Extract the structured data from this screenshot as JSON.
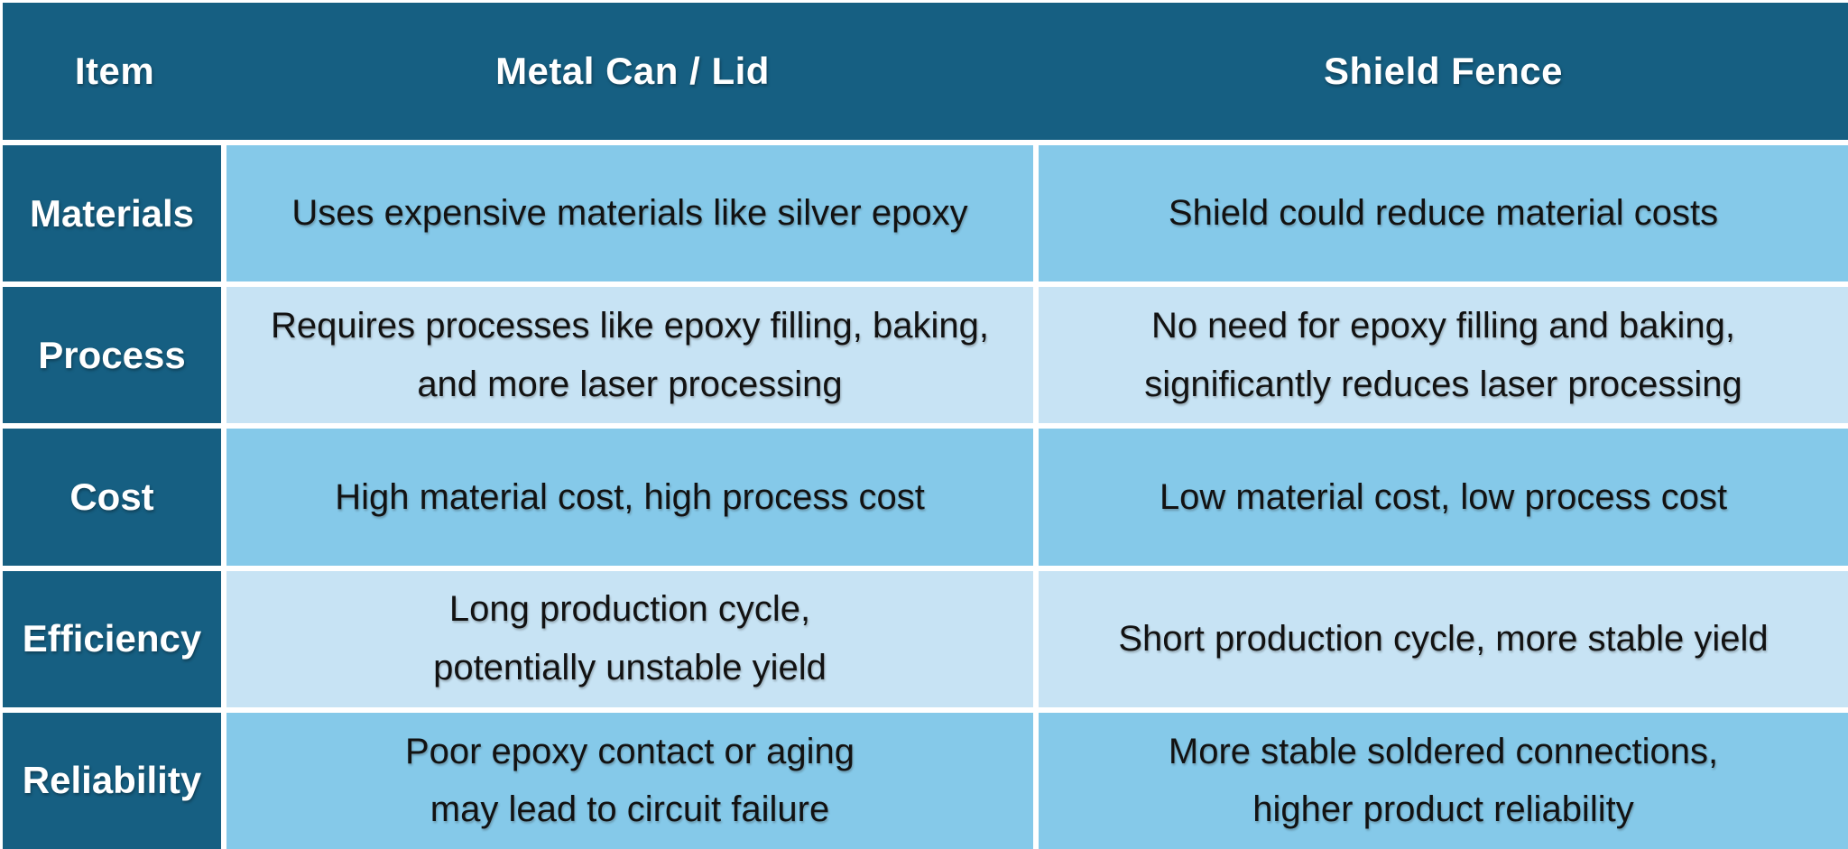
{
  "table": {
    "columns": [
      "Item",
      "Metal Can / Lid",
      "Shield Fence"
    ],
    "rows": [
      {
        "label": "Materials",
        "cells": [
          "Uses expensive materials like silver epoxy",
          "Shield could reduce material costs"
        ]
      },
      {
        "label": "Process",
        "cells": [
          "Requires processes like epoxy filling, baking,\nand more laser processing",
          "No need for epoxy filling and baking,\nsignificantly reduces laser processing"
        ]
      },
      {
        "label": "Cost",
        "cells": [
          "High material cost, high process cost",
          "Low material cost, low process cost"
        ]
      },
      {
        "label": "Efficiency",
        "cells": [
          "Long production cycle,\npotentially unstable yield",
          "Short production cycle, more stable yield"
        ]
      },
      {
        "label": "Reliability",
        "cells": [
          "Poor epoxy contact or aging\nmay lead to circuit failure",
          "More stable soldered connections,\nhigher product reliability"
        ]
      }
    ]
  },
  "colors": {
    "header_bg": "#165F82",
    "row_label_bg": "#165F82",
    "header_text": "#FFFFFF",
    "cell_medium": "#85C9E9",
    "cell_light": "#C7E3F4",
    "divider": "#FFFFFF",
    "body_text": "#121212"
  }
}
